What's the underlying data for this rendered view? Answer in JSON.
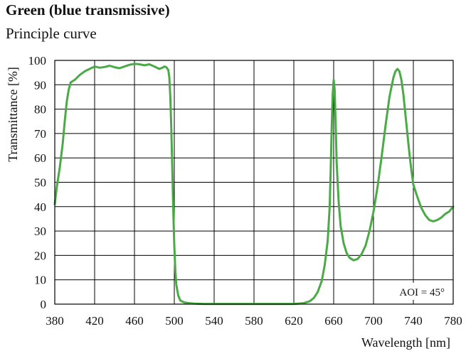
{
  "chart_data": {
    "type": "line",
    "title": "Green (blue transmissive)",
    "subtitle": "Principle curve",
    "xlabel": "Wavelength [nm]",
    "ylabel": "Transmittance [%]",
    "annotation": "AOI = 45°",
    "xlim": [
      380,
      780
    ],
    "ylim": [
      0,
      100
    ],
    "xticks": [
      380,
      420,
      460,
      500,
      540,
      580,
      620,
      660,
      700,
      740,
      780
    ],
    "yticks": [
      0,
      10,
      20,
      30,
      40,
      50,
      60,
      70,
      80,
      90,
      100
    ],
    "grid": true,
    "series": [
      {
        "color": "#4aaa46",
        "x": [
          380,
          382,
          385,
          388,
          390,
          392,
          394,
          396,
          400,
          405,
          410,
          415,
          420,
          425,
          430,
          435,
          440,
          445,
          450,
          455,
          460,
          465,
          470,
          475,
          480,
          485,
          488,
          490,
          492,
          494,
          495,
          496,
          497,
          498,
          499,
          500,
          501,
          502,
          504,
          506,
          510,
          515,
          520,
          530,
          540,
          560,
          580,
          600,
          620,
          630,
          636,
          640,
          644,
          648,
          651,
          654,
          656,
          657,
          658,
          659,
          660,
          661,
          662,
          663,
          665,
          667,
          670,
          673,
          676,
          680,
          684,
          688,
          692,
          696,
          700,
          704,
          708,
          712,
          716,
          720,
          722,
          724,
          726,
          728,
          730,
          732,
          734,
          736,
          738,
          740,
          744,
          748,
          752,
          756,
          760,
          764,
          768,
          772,
          776,
          780
        ],
        "y": [
          41,
          48,
          56,
          66,
          75,
          83,
          88,
          91,
          92,
          94,
          95.5,
          96.5,
          97.5,
          97,
          97.3,
          97.8,
          97.2,
          96.8,
          97.5,
          98.2,
          98.6,
          98.4,
          98,
          98.4,
          97.5,
          96.5,
          97,
          97.5,
          97.2,
          96,
          93,
          85,
          72,
          55,
          38,
          24,
          14,
          8,
          3.5,
          1.5,
          0.7,
          0.4,
          0.2,
          0.1,
          0.1,
          0.1,
          0.1,
          0.1,
          0.1,
          0.4,
          1.2,
          2.5,
          5,
          9.5,
          16,
          26,
          40,
          55,
          72,
          86,
          92,
          88,
          74,
          58,
          42,
          32,
          25,
          21,
          19,
          18,
          18.5,
          20.5,
          24,
          30,
          38,
          48,
          60,
          73,
          85,
          93,
          95.5,
          96.5,
          95.5,
          92,
          86,
          78,
          70,
          62,
          55,
          49,
          44,
          39.5,
          36.5,
          34.5,
          34,
          34.5,
          35.5,
          37,
          38,
          40
        ]
      }
    ]
  }
}
